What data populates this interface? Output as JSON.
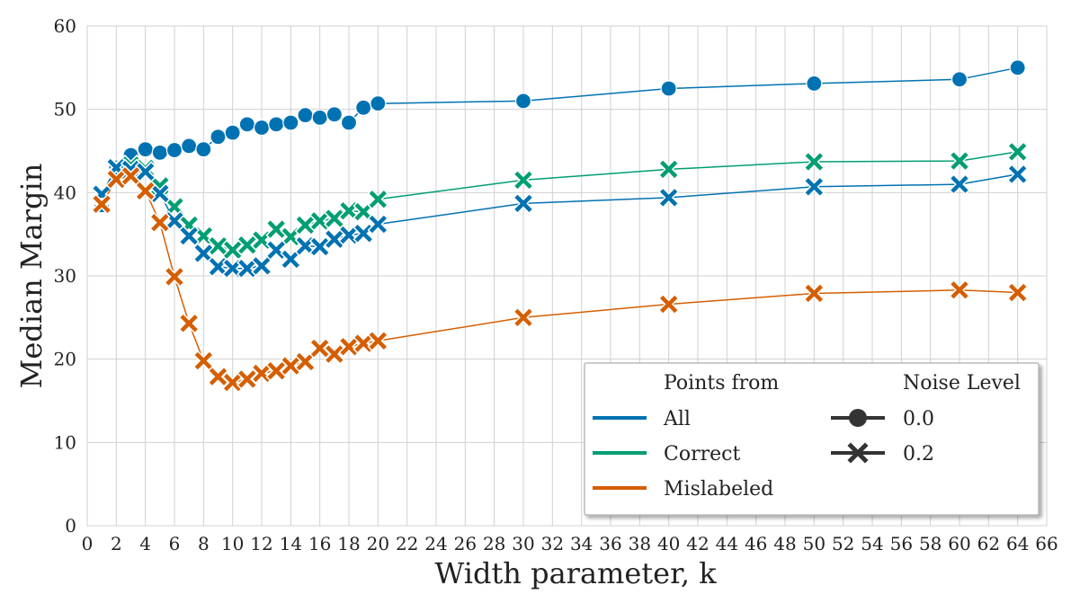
{
  "chart_data": {
    "type": "line",
    "xlabel": "Width parameter, k",
    "ylabel": "Median Margin",
    "xlim": [
      0,
      66
    ],
    "ylim": [
      0,
      60
    ],
    "xticks": [
      0,
      2,
      4,
      6,
      8,
      10,
      12,
      14,
      16,
      18,
      20,
      22,
      24,
      26,
      28,
      30,
      32,
      34,
      36,
      38,
      40,
      42,
      44,
      46,
      48,
      50,
      52,
      54,
      56,
      58,
      60,
      62,
      64,
      66
    ],
    "yticks": [
      0,
      10,
      20,
      30,
      40,
      50,
      60
    ],
    "grid": true,
    "x": [
      1,
      2,
      3,
      4,
      5,
      6,
      7,
      8,
      9,
      10,
      11,
      12,
      13,
      14,
      15,
      16,
      17,
      18,
      19,
      20,
      30,
      40,
      50,
      60,
      64
    ],
    "series": [
      {
        "name": "All, 0.0",
        "points_from": "All",
        "noise_level": "0.0",
        "color": "#0072b2",
        "marker": "circle",
        "values": [
          38.5,
          43.0,
          44.5,
          45.2,
          44.8,
          45.1,
          45.6,
          45.2,
          46.7,
          47.2,
          48.2,
          47.8,
          48.2,
          48.4,
          49.3,
          49.0,
          49.4,
          48.4,
          50.2,
          50.7,
          51.0,
          52.5,
          53.1,
          53.6,
          55.0
        ]
      },
      {
        "name": "Correct, 0.2",
        "points_from": "Correct",
        "noise_level": "0.2",
        "color": "#009e73",
        "marker": "x",
        "values": [
          39.7,
          43.1,
          43.3,
          42.9,
          40.8,
          38.3,
          36.1,
          34.8,
          33.6,
          33.1,
          33.7,
          34.3,
          35.6,
          34.7,
          36.1,
          36.6,
          36.9,
          37.8,
          37.7,
          39.2,
          41.5,
          42.8,
          43.7,
          43.8,
          44.9
        ]
      },
      {
        "name": "All, 0.2",
        "points_from": "All",
        "noise_level": "0.2",
        "color": "#0072b2",
        "marker": "x",
        "values": [
          39.8,
          43.0,
          42.8,
          42.5,
          39.9,
          36.6,
          34.8,
          32.7,
          31.1,
          30.9,
          30.9,
          31.2,
          33.1,
          32.0,
          33.6,
          33.5,
          34.4,
          34.9,
          35.1,
          36.2,
          38.7,
          39.4,
          40.7,
          41.0,
          42.2
        ]
      },
      {
        "name": "Mislabeled, 0.2",
        "points_from": "Mislabeled",
        "noise_level": "0.2",
        "color": "#d55e00",
        "marker": "x",
        "values": [
          38.6,
          41.6,
          42.0,
          40.2,
          36.4,
          29.9,
          24.3,
          19.8,
          17.9,
          17.2,
          17.6,
          18.3,
          18.6,
          19.2,
          19.7,
          21.3,
          20.6,
          21.5,
          21.9,
          22.2,
          25.0,
          26.6,
          27.9,
          28.3,
          28.0
        ]
      }
    ],
    "legend": {
      "placement": "bottom-right",
      "col1_title": "Points from",
      "col1_items": [
        {
          "label": "All",
          "color": "#0072b2"
        },
        {
          "label": "Correct",
          "color": "#009e73"
        },
        {
          "label": "Mislabeled",
          "color": "#d55e00"
        }
      ],
      "col2_title": "Noise Level",
      "col2_items": [
        {
          "label": "0.0",
          "marker": "circle"
        },
        {
          "label": "0.2",
          "marker": "x"
        }
      ]
    }
  }
}
